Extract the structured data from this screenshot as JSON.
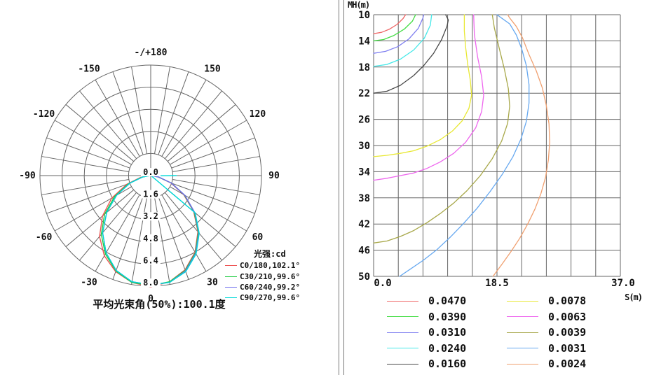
{
  "chart_data": [
    {
      "type": "line",
      "subtype": "polar-intensity",
      "title": "平均光束角(50%):100.1度",
      "legend_title": "光强:cd",
      "r_axis": {
        "tick_labels": [
          "0.0",
          "1.6",
          "3.2",
          "4.8",
          "6.4",
          "8.0"
        ],
        "max": 8,
        "step": 1.6
      },
      "angle_tick_step_deg": 10,
      "angle_labels": [
        {
          "angle": 180,
          "label": "-/+180"
        },
        {
          "angle": -150,
          "label": "-150"
        },
        {
          "angle": 150,
          "label": "150"
        },
        {
          "angle": -120,
          "label": "-120"
        },
        {
          "angle": 120,
          "label": "120"
        },
        {
          "angle": -90,
          "label": "-90"
        },
        {
          "angle": 90,
          "label": "90"
        },
        {
          "angle": -60,
          "label": "-60"
        },
        {
          "angle": 60,
          "label": "60"
        },
        {
          "angle": -30,
          "label": "-30"
        },
        {
          "angle": 30,
          "label": "30"
        },
        {
          "angle": 0,
          "label": "0"
        }
      ],
      "theta_start": -90,
      "theta_step": 10,
      "series": [
        {
          "name": "C0/180,102.1°",
          "color": "#ee5555",
          "r": [
            0.1,
            0.75,
            1.85,
            3.25,
            4.55,
            5.75,
            6.7,
            7.4,
            7.85,
            8.05,
            7.8,
            7.25,
            6.4,
            5.3,
            4.05,
            2.75,
            1.55,
            0.55,
            0.05
          ]
        },
        {
          "name": "C30/210,99.6°",
          "color": "#22cc44",
          "r": [
            0.05,
            0.65,
            1.7,
            3.0,
            4.35,
            5.55,
            6.55,
            7.35,
            7.85,
            7.95,
            7.8,
            7.3,
            6.45,
            5.35,
            4.1,
            2.8,
            1.6,
            0.55,
            0.05
          ]
        },
        {
          "name": "C60/240,99.2°",
          "color": "#6b6bee",
          "r": [
            0.05,
            0.6,
            1.6,
            2.85,
            4.15,
            5.4,
            6.45,
            7.3,
            7.8,
            7.9,
            7.85,
            7.35,
            6.5,
            5.4,
            4.15,
            2.85,
            1.6,
            0.6,
            0.05
          ]
        },
        {
          "name": "C90/270,99.6°",
          "color": "#00d8d8",
          "r": [
            0.05,
            0.6,
            1.6,
            2.85,
            4.15,
            5.4,
            6.45,
            7.3,
            7.8,
            7.9,
            7.85,
            7.4,
            6.55,
            5.45,
            4.2,
            0.08,
            0.08,
            0.08,
            1.85
          ]
        }
      ]
    },
    {
      "type": "line",
      "subtype": "iso-illuminance-contour",
      "xlabel": "S(m)",
      "ylabel": "MH(m)",
      "xlim": [
        0,
        37
      ],
      "ylim": [
        10,
        50
      ],
      "y_inverted": true,
      "x_tick_labels": [
        "0.0",
        "18.5",
        "37.0"
      ],
      "y_ticks": [
        10,
        14,
        18,
        22,
        26,
        30,
        34,
        38,
        42,
        46,
        50
      ],
      "x_gridlines": 10,
      "y_gridlines": 10,
      "contours": [
        {
          "value": "0.0470",
          "color": "#ee6666",
          "points": [
            [
              0,
              12.9
            ],
            [
              1.2,
              12.7
            ],
            [
              2.4,
              12.2
            ],
            [
              3.5,
              11.5
            ],
            [
              4.4,
              10.6
            ],
            [
              4.8,
              10
            ]
          ]
        },
        {
          "value": "0.0390",
          "color": "#44dd44",
          "points": [
            [
              0,
              14.0
            ],
            [
              1.5,
              13.8
            ],
            [
              3,
              13.2
            ],
            [
              4.6,
              12.2
            ],
            [
              5.8,
              11.0
            ],
            [
              6.3,
              10
            ]
          ]
        },
        {
          "value": "0.0310",
          "color": "#8080f0",
          "points": [
            [
              0,
              15.9
            ],
            [
              1.8,
              15.6
            ],
            [
              3.6,
              14.9
            ],
            [
              5.3,
              13.7
            ],
            [
              6.7,
              12.1
            ],
            [
              7.4,
              10.5
            ],
            [
              7.5,
              10
            ]
          ]
        },
        {
          "value": "0.0240",
          "color": "#44e8e8",
          "points": [
            [
              0,
              17.9
            ],
            [
              2,
              17.6
            ],
            [
              4,
              16.8
            ],
            [
              6,
              15.4
            ],
            [
              7.6,
              13.6
            ],
            [
              8.5,
              11.6
            ],
            [
              8.7,
              10
            ]
          ]
        },
        {
          "value": "0.0160",
          "color": "#4a4a4a",
          "points": [
            [
              0,
              22.0
            ],
            [
              2,
              21.7
            ],
            [
              4,
              20.8
            ],
            [
              6,
              19.3
            ],
            [
              7.5,
              17.8
            ],
            [
              9,
              15.9
            ],
            [
              10.2,
              13.8
            ],
            [
              11.0,
              11.8
            ],
            [
              11.2,
              10.8
            ],
            [
              10.9,
              10.2
            ],
            [
              10.8,
              10
            ]
          ]
        },
        {
          "value": "0.0078",
          "color": "#e8e833",
          "points": [
            [
              0,
              31.7
            ],
            [
              2,
              31.5
            ],
            [
              4,
              31.2
            ],
            [
              6,
              30.8
            ],
            [
              8,
              30.1
            ],
            [
              10,
              29.1
            ],
            [
              11.8,
              27.8
            ],
            [
              13.3,
              26.2
            ],
            [
              14.3,
              24.3
            ],
            [
              14.7,
              22.3
            ],
            [
              14.5,
              20.0
            ],
            [
              14.1,
              17.5
            ],
            [
              13.8,
              15.0
            ],
            [
              13.6,
              12.5
            ],
            [
              13.6,
              10
            ]
          ]
        },
        {
          "value": "0.0063",
          "color": "#ee66ee",
          "points": [
            [
              0,
              35.3
            ],
            [
              2,
              35.0
            ],
            [
              4,
              34.6
            ],
            [
              6,
              34.2
            ],
            [
              8,
              33.5
            ],
            [
              10,
              32.5
            ],
            [
              12,
              31.2
            ],
            [
              13.8,
              29.5
            ],
            [
              15.3,
              27.3
            ],
            [
              16.2,
              24.8
            ],
            [
              16.5,
              22.3
            ],
            [
              16.2,
              19.5
            ],
            [
              15.6,
              16.5
            ],
            [
              15.1,
              13.0
            ],
            [
              15.0,
              10
            ]
          ]
        },
        {
          "value": "0.0039",
          "color": "#a8a84a",
          "points": [
            [
              0,
              44.9
            ],
            [
              2,
              44.6
            ],
            [
              4,
              43.9
            ],
            [
              6,
              43.0
            ],
            [
              8,
              41.8
            ],
            [
              10,
              40.4
            ],
            [
              12,
              38.8
            ],
            [
              14,
              36.9
            ],
            [
              16,
              34.6
            ],
            [
              17.8,
              32.0
            ],
            [
              19.2,
              29.3
            ],
            [
              20.1,
              26.6
            ],
            [
              20.4,
              24.0
            ],
            [
              20.2,
              21.3
            ],
            [
              19.6,
              18.3
            ],
            [
              18.8,
              15.0
            ],
            [
              18.1,
              12.0
            ],
            [
              17.8,
              10
            ]
          ]
        },
        {
          "value": "0.0031",
          "color": "#66a8f0",
          "points": [
            [
              3.9,
              50
            ],
            [
              5.5,
              48.9
            ],
            [
              7.5,
              47.5
            ],
            [
              9.5,
              45.9
            ],
            [
              11.5,
              44.0
            ],
            [
              13.5,
              41.9
            ],
            [
              15.5,
              39.6
            ],
            [
              17.5,
              37.0
            ],
            [
              19.3,
              34.4
            ],
            [
              20.9,
              31.7
            ],
            [
              22.1,
              29.0
            ],
            [
              22.9,
              26.3
            ],
            [
              23.3,
              23.5
            ],
            [
              23.3,
              20.7
            ],
            [
              22.9,
              17.8
            ],
            [
              22.2,
              15.2
            ],
            [
              21.4,
              13.1
            ],
            [
              20.4,
              11.4
            ],
            [
              18.9,
              10.3
            ],
            [
              18.5,
              10
            ]
          ]
        },
        {
          "value": "0.0024",
          "color": "#f0a070",
          "points": [
            [
              17.9,
              50
            ],
            [
              19.2,
              48.2
            ],
            [
              20.6,
              46.2
            ],
            [
              21.9,
              44.2
            ],
            [
              23.1,
              42.0
            ],
            [
              24.2,
              39.7
            ],
            [
              25.1,
              37.3
            ],
            [
              25.8,
              34.8
            ],
            [
              26.2,
              32.2
            ],
            [
              26.4,
              29.5
            ],
            [
              26.3,
              26.7
            ],
            [
              25.9,
              23.9
            ],
            [
              25.3,
              21.2
            ],
            [
              24.4,
              18.6
            ],
            [
              23.3,
              16.1
            ],
            [
              22.3,
              13.5
            ],
            [
              21.4,
              11.8
            ],
            [
              20.4,
              10.5
            ],
            [
              20.1,
              10
            ]
          ]
        }
      ],
      "legend_left": [
        "0.0470",
        "0.0390",
        "0.0310",
        "0.0240",
        "0.0160"
      ],
      "legend_right": [
        "0.0078",
        "0.0063",
        "0.0039",
        "0.0031",
        "0.0024"
      ]
    }
  ],
  "style": {
    "grid_color": "#666666",
    "divider_color": "#777777"
  }
}
